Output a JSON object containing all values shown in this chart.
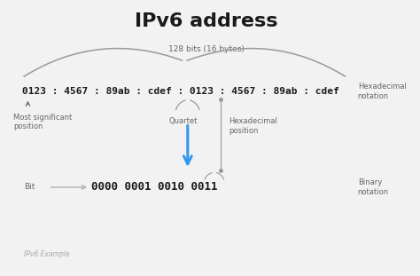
{
  "title": "IPv6 address",
  "subtitle": "128 bits (16 bytes)",
  "hex_address": "0123 : 4567 : 89ab : cdef : 0123 : 4567 : 89ab : cdef",
  "binary": "0000 0001 0010 0011",
  "bit_label": "Bit",
  "quartet_label": "Quartet",
  "hex_pos_label": "Hexadecimal\nposition",
  "most_sig_label": "Most significant\nposition",
  "hex_notation_label": "Hexadecimal\nnotation",
  "binary_notation_label": "Binary\nnotation",
  "footer": "IPv6 Example",
  "bg_color": "#f2f2f2",
  "text_color_dark": "#1a1a1a",
  "text_color_mid": "#666666",
  "text_color_light": "#aaaaaa",
  "arrow_color": "#3399ee",
  "bracket_color": "#999999",
  "line_color": "#aaaaaa",
  "title_fontsize": 16,
  "hex_fontsize": 8.0,
  "label_fontsize": 6.0,
  "binary_fontsize": 9.0,
  "footer_fontsize": 5.5
}
